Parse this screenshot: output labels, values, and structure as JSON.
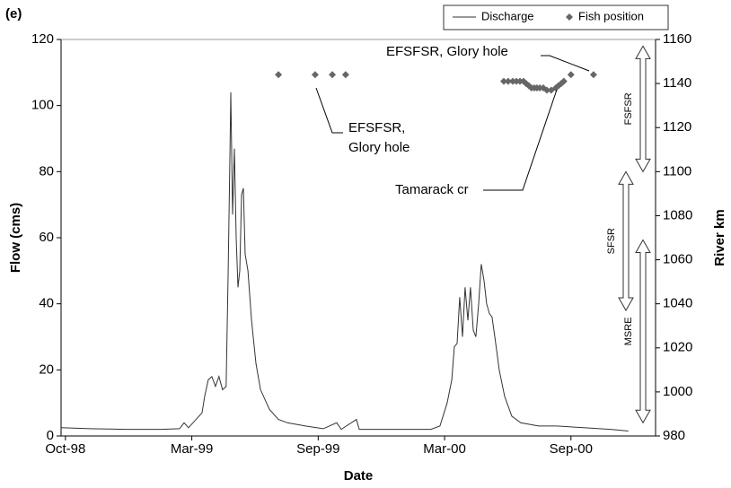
{
  "chart_data": {
    "type": "line",
    "panel_label": "(e)",
    "x_label": "Date",
    "y_label": "Flow (cms)",
    "y2_label": "River km",
    "xlim": [
      1998.733,
      2001.052
    ],
    "xticks": [
      {
        "value": 1998.75,
        "label": "Oct-98"
      },
      {
        "value": 1999.243,
        "label": "Mar-99"
      },
      {
        "value": 1999.736,
        "label": "Sep-99"
      },
      {
        "value": 2000.229,
        "label": "Mar-00"
      },
      {
        "value": 2000.722,
        "label": "Sep-00"
      }
    ],
    "ylim": [
      0,
      120
    ],
    "yticks": [
      0,
      20,
      40,
      60,
      80,
      100,
      120
    ],
    "y2lim": [
      980,
      1160
    ],
    "y2ticks": [
      980,
      1000,
      1020,
      1040,
      1060,
      1080,
      1100,
      1120,
      1140,
      1160
    ],
    "legend": "top-right",
    "series": [
      {
        "name": "Discharge",
        "color": "#333333",
        "marker": "none",
        "x": [
          1998.733,
          1998.845,
          1998.985,
          1999.125,
          1999.195,
          1999.213,
          1999.23,
          1999.283,
          1999.293,
          1999.307,
          1999.321,
          1999.335,
          1999.349,
          1999.363,
          1999.377,
          1999.385,
          1999.392,
          1999.395,
          1999.402,
          1999.409,
          1999.416,
          1999.423,
          1999.43,
          1999.437,
          1999.444,
          1999.451,
          1999.462,
          1999.476,
          1999.493,
          1999.511,
          1999.546,
          1999.581,
          1999.616,
          1999.686,
          1999.756,
          1999.808,
          1999.826,
          1999.885,
          1999.896,
          1999.966,
          2000.036,
          2000.106,
          2000.176,
          2000.211,
          2000.239,
          2000.257,
          2000.267,
          2000.278,
          2000.288,
          2000.299,
          2000.309,
          2000.32,
          2000.33,
          2000.341,
          2000.351,
          2000.362,
          2000.372,
          2000.383,
          2000.393,
          2000.404,
          2000.414,
          2000.425,
          2000.442,
          2000.463,
          2000.491,
          2000.526,
          2000.596,
          2000.666,
          2000.771,
          2000.876,
          2000.946
        ],
        "values": [
          2.5,
          2.2,
          2,
          2,
          2.2,
          4,
          2.5,
          7,
          12,
          17,
          18,
          15,
          18,
          14,
          15,
          50,
          86,
          104,
          67,
          87,
          60,
          45,
          50,
          73,
          75,
          55,
          50,
          35,
          22,
          14,
          8,
          5,
          4,
          3,
          2.2,
          4,
          2,
          5,
          2,
          2,
          2,
          2,
          2,
          3,
          10,
          17,
          27,
          28,
          42,
          30,
          45,
          35,
          45,
          32,
          30,
          40,
          52,
          47,
          40,
          37,
          36,
          30,
          20,
          12,
          6,
          4,
          3,
          3,
          2.5,
          2,
          1.5
        ]
      },
      {
        "name": "Fish position",
        "color": "#666666",
        "marker": "diamond",
        "axis": "y2",
        "x": [
          1999.581,
          1999.724,
          1999.791,
          1999.843,
          2000.46,
          2000.477,
          2000.495,
          2000.509,
          2000.523,
          2000.537,
          2000.547,
          2000.558,
          2000.568,
          2000.579,
          2000.589,
          2000.6,
          2000.614,
          2000.628,
          2000.645,
          2000.663,
          2000.673,
          2000.684,
          2000.694,
          2000.722,
          2000.81
        ],
        "values": [
          1144,
          1144,
          1144,
          1144,
          1141,
          1141,
          1141,
          1141,
          1141,
          1141,
          1140,
          1139,
          1138,
          1138,
          1138,
          1138,
          1138,
          1137,
          1137,
          1138,
          1139,
          1140,
          1141,
          1144,
          1144
        ]
      }
    ],
    "annotations": [
      {
        "text": "EFSFSR, Glory hole"
      },
      {
        "lines": [
          "EFSFSR,",
          "Glory hole"
        ]
      },
      {
        "text": "Tamarack cr"
      }
    ],
    "ranges": [
      {
        "label": "FSFSR",
        "from": 1157,
        "to": 1100
      },
      {
        "label": "SFSR",
        "from": 1100,
        "to": 1037
      },
      {
        "label": "MSRE",
        "from": 1069,
        "to": 986
      }
    ]
  }
}
